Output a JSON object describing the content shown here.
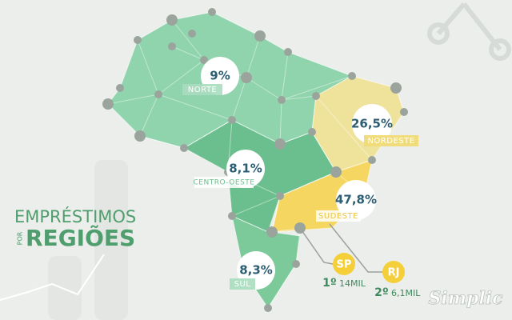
{
  "title": {
    "line1": "EMPRÉSTIMOS",
    "connector": "POR",
    "line2": "REGIÕES"
  },
  "regions": [
    {
      "name": "NORTE",
      "share": "9%"
    },
    {
      "name": "NORDESTE",
      "share": "26,5%"
    },
    {
      "name": "CENTRO-OESTE",
      "share": "8,1%"
    },
    {
      "name": "SUDESTE",
      "share": "47,8%"
    },
    {
      "name": "SUL",
      "share": "8,3%"
    }
  ],
  "cities": [
    {
      "code": "SP",
      "rank": "1º",
      "amount": "14MIL"
    },
    {
      "code": "RJ",
      "rank": "2º",
      "amount": "6,1MIL"
    }
  ],
  "brand": "Simplic"
}
